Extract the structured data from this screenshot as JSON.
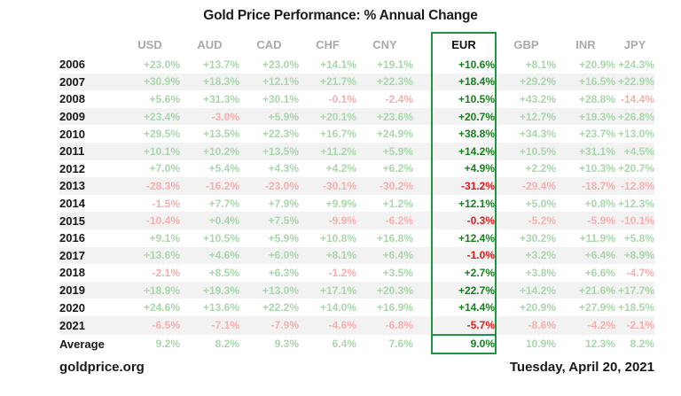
{
  "title": "Gold Price Performance: % Annual Change",
  "footer": {
    "source": "goldprice.org",
    "date": "Tuesday, April 20, 2021"
  },
  "colors": {
    "positive": "#a9d7ab",
    "negative": "#f5afae",
    "eur_positive": "#17801d",
    "eur_negative": "#e21a1a",
    "box_border": "#1e9444",
    "header_gray": "#a9a9a9",
    "row_stripe": "#f2f2f2"
  },
  "chart_data": {
    "type": "table",
    "title": "Gold Price Performance: % Annual Change",
    "columns": [
      "USD",
      "AUD",
      "CAD",
      "CHF",
      "CNY",
      "EUR",
      "GBP",
      "INR",
      "JPY"
    ],
    "highlight_column": "EUR",
    "rows": [
      {
        "label": "2006",
        "values": [
          "+23.0%",
          "+13.7%",
          "+23.0%",
          "+14.1%",
          "+19.1%",
          "+10.6%",
          "+8.1%",
          "+20.9%",
          "+24.3%"
        ]
      },
      {
        "label": "2007",
        "values": [
          "+30.9%",
          "+18.3%",
          "+12.1%",
          "+21.7%",
          "+22.3%",
          "+18.4%",
          "+29.2%",
          "+16.5%",
          "+22.9%"
        ]
      },
      {
        "label": "2008",
        "values": [
          "+5.6%",
          "+31.3%",
          "+30.1%",
          "-0.1%",
          "-2.4%",
          "+10.5%",
          "+43.2%",
          "+28.8%",
          "-14.4%"
        ]
      },
      {
        "label": "2009",
        "values": [
          "+23.4%",
          "-3.0%",
          "+5.9%",
          "+20.1%",
          "+23.6%",
          "+20.7%",
          "+12.7%",
          "+19.3%",
          "+26.8%"
        ]
      },
      {
        "label": "2010",
        "values": [
          "+29.5%",
          "+13.5%",
          "+22.3%",
          "+16.7%",
          "+24.9%",
          "+38.8%",
          "+34.3%",
          "+23.7%",
          "+13.0%"
        ]
      },
      {
        "label": "2011",
        "values": [
          "+10.1%",
          "+10.2%",
          "+13.5%",
          "+11.2%",
          "+5.9%",
          "+14.2%",
          "+10.5%",
          "+31.1%",
          "+4.5%"
        ]
      },
      {
        "label": "2012",
        "values": [
          "+7.0%",
          "+5.4%",
          "+4.3%",
          "+4.2%",
          "+6.2%",
          "+4.9%",
          "+2.2%",
          "+10.3%",
          "+20.7%"
        ]
      },
      {
        "label": "2013",
        "values": [
          "-28.3%",
          "-16.2%",
          "-23.0%",
          "-30.1%",
          "-30.2%",
          "-31.2%",
          "-29.4%",
          "-18.7%",
          "-12.8%"
        ]
      },
      {
        "label": "2014",
        "values": [
          "-1.5%",
          "+7.7%",
          "+7.9%",
          "+9.9%",
          "+1.2%",
          "+12.1%",
          "+5.0%",
          "+0.8%",
          "+12.3%"
        ]
      },
      {
        "label": "2015",
        "values": [
          "-10.4%",
          "+0.4%",
          "+7.5%",
          "-9.9%",
          "-6.2%",
          "-0.3%",
          "-5.2%",
          "-5.9%",
          "-10.1%"
        ]
      },
      {
        "label": "2016",
        "values": [
          "+9.1%",
          "+10.5%",
          "+5.9%",
          "+10.8%",
          "+16.8%",
          "+12.4%",
          "+30.2%",
          "+11.9%",
          "+5.8%"
        ]
      },
      {
        "label": "2017",
        "values": [
          "+13.6%",
          "+4.6%",
          "+6.0%",
          "+8.1%",
          "+6.4%",
          "-1.0%",
          "+3.2%",
          "+6.4%",
          "+8.9%"
        ]
      },
      {
        "label": "2018",
        "values": [
          "-2.1%",
          "+8.5%",
          "+6.3%",
          "-1.2%",
          "+3.5%",
          "+2.7%",
          "+3.8%",
          "+6.6%",
          "-4.7%"
        ]
      },
      {
        "label": "2019",
        "values": [
          "+18.9%",
          "+19.3%",
          "+13.0%",
          "+17.1%",
          "+20.3%",
          "+22.7%",
          "+14.2%",
          "+21.6%",
          "+17.7%"
        ]
      },
      {
        "label": "2020",
        "values": [
          "+24.6%",
          "+13.6%",
          "+22.2%",
          "+14.0%",
          "+16.9%",
          "+14.4%",
          "+20.9%",
          "+27.9%",
          "+18.5%"
        ]
      },
      {
        "label": "2021",
        "values": [
          "-6.5%",
          "-7.1%",
          "-7.9%",
          "-4.6%",
          "-6.8%",
          "-5.7%",
          "-8.6%",
          "-4.2%",
          "-2.1%"
        ]
      },
      {
        "label": "Average",
        "values": [
          "9.2%",
          "8.2%",
          "9.3%",
          "6.4%",
          "7.6%",
          "9.0%",
          "10.9%",
          "12.3%",
          "8.2%"
        ]
      }
    ]
  }
}
